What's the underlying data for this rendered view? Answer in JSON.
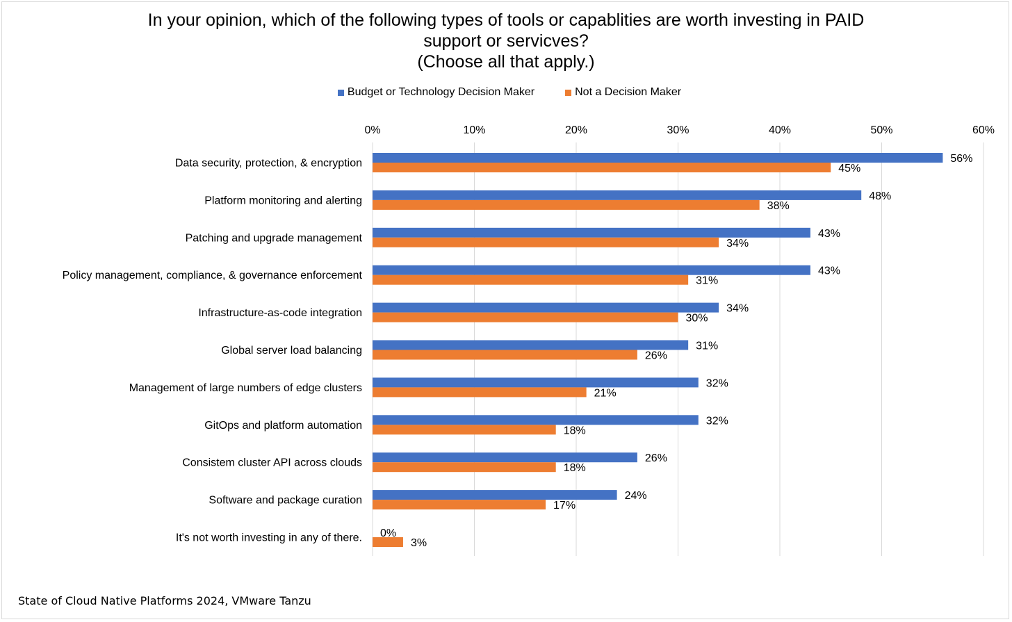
{
  "chart_data": {
    "type": "bar",
    "orientation": "horizontal",
    "title_lines": [
      "In your opinion, which of the following types of tools or capablities are worth investing in PAID",
      "support or servicves?",
      "(Choose all that apply.)"
    ],
    "categories": [
      "Data security, protection, & encryption",
      "Platform monitoring and alerting",
      "Patching and upgrade management",
      "Policy management, compliance, & governance enforcement",
      "Infrastructure-as-code integration",
      "Global server load balancing",
      "Management of large numbers of edge clusters",
      "GitOps and platform automation",
      "Consistem cluster API across clouds",
      "Software and package curation",
      "It's not worth investing in any of there."
    ],
    "series": [
      {
        "name": "Budget or Technology Decision Maker",
        "color": "#4472c4",
        "values": [
          56,
          48,
          43,
          43,
          34,
          31,
          32,
          32,
          26,
          24,
          0
        ],
        "labels": [
          "56%",
          "48%",
          "43%",
          "43%",
          "34%",
          "31%",
          "32%",
          "32%",
          "26%",
          "24%",
          "0%"
        ]
      },
      {
        "name": "Not a Decision Maker",
        "color": "#ed7d31",
        "values": [
          45,
          38,
          34,
          31,
          30,
          26,
          21,
          18,
          18,
          17,
          3
        ],
        "labels": [
          "45%",
          "38%",
          "34%",
          "31%",
          "30%",
          "26%",
          "21%",
          "18%",
          "18%",
          "17%",
          "3%"
        ]
      }
    ],
    "xlim": [
      0,
      60
    ],
    "xticks": [
      0,
      10,
      20,
      30,
      40,
      50,
      60
    ],
    "xtick_labels": [
      "0%",
      "10%",
      "20%",
      "30%",
      "40%",
      "50%",
      "60%"
    ],
    "x_axis_position": "top",
    "grid": true,
    "gridline_color": "#d9d9d9",
    "legend_position": "top"
  },
  "source": "State of Cloud Native Platforms 2024, VMware Tanzu"
}
